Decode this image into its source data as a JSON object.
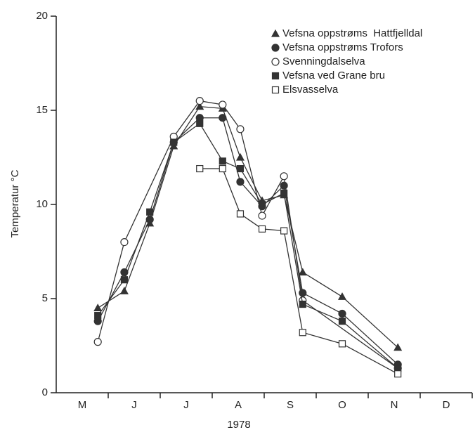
{
  "chart_data": {
    "type": "line",
    "xlabel": "1978",
    "ylabel": "Temperatur °C",
    "categories": [
      "M",
      "J",
      "J",
      "A",
      "S",
      "O",
      "N",
      "D"
    ],
    "xlim": [
      0,
      8
    ],
    "ylim": [
      0,
      20
    ],
    "yticks": [
      0,
      5,
      10,
      15,
      20
    ],
    "legend": "upper right",
    "series": [
      {
        "name": "Vefsna oppstrøms  Hattfjelldal",
        "color": "#333333",
        "marker": "triangle",
        "x": [
          0.8,
          1.31,
          1.8,
          2.26,
          2.76,
          3.2,
          3.54,
          3.96,
          4.38,
          4.74,
          5.5,
          6.57
        ],
        "values": [
          4.5,
          5.4,
          9.0,
          13.1,
          15.2,
          15.1,
          12.5,
          10.2,
          10.5,
          6.4,
          5.1,
          2.4
        ]
      },
      {
        "name": "Vefsna oppstrøms Trofors",
        "color": "#333333",
        "marker": "circle",
        "x": [
          0.8,
          1.31,
          1.8,
          2.26,
          2.76,
          3.2,
          3.54,
          3.96,
          4.38,
          4.74,
          5.5,
          6.57
        ],
        "values": [
          3.8,
          6.4,
          9.2,
          13.3,
          14.6,
          14.6,
          11.2,
          9.9,
          11.0,
          5.3,
          4.2,
          1.5
        ]
      },
      {
        "name": "Svenningdalselva",
        "color": "#333333",
        "marker": "circle-open",
        "x": [
          0.8,
          1.31,
          2.26,
          2.76,
          3.2,
          3.54,
          3.96,
          4.38,
          4.74,
          6.57
        ],
        "values": [
          2.7,
          8.0,
          13.6,
          15.5,
          15.3,
          14.0,
          9.4,
          11.5,
          4.9,
          1.3
        ]
      },
      {
        "name": "Vefsna ved Grane bru",
        "color": "#333333",
        "marker": "square",
        "x": [
          0.8,
          1.31,
          1.8,
          2.26,
          2.76,
          3.2,
          3.54,
          3.96,
          4.38,
          4.74,
          5.5,
          6.57
        ],
        "values": [
          4.1,
          6.0,
          9.6,
          13.3,
          14.3,
          12.3,
          11.9,
          10.0,
          10.6,
          4.7,
          3.8,
          1.3
        ]
      },
      {
        "name": "Elsvasselva",
        "color": "#333333",
        "marker": "square-open",
        "x": [
          2.76,
          3.2,
          3.54,
          3.96,
          4.38,
          4.74,
          5.5,
          6.57
        ],
        "values": [
          11.9,
          11.9,
          9.5,
          8.7,
          8.6,
          3.2,
          2.6,
          1.0
        ]
      }
    ]
  }
}
